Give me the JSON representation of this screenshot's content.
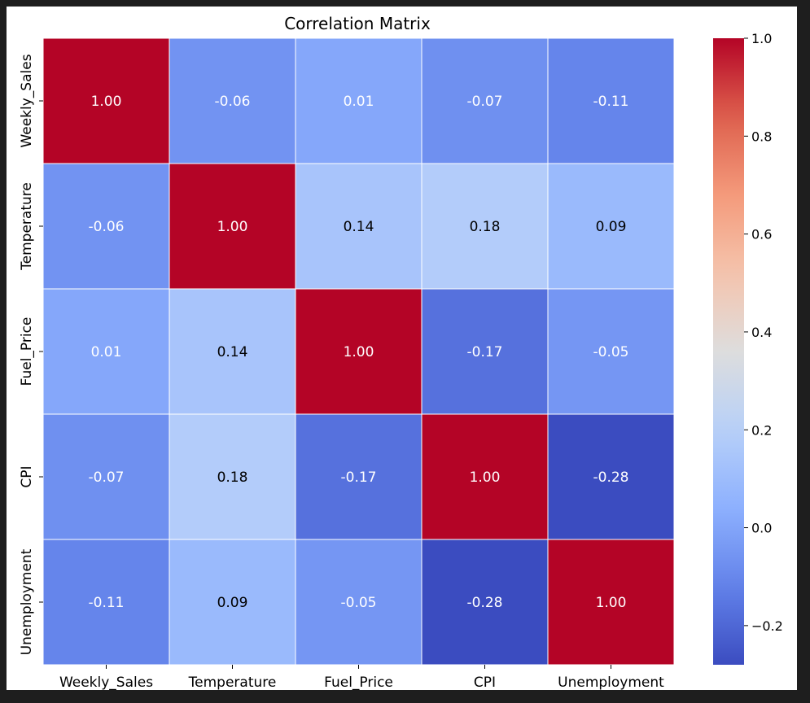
{
  "chart_data": {
    "type": "heatmap",
    "title": "Correlation Matrix",
    "x_labels": [
      "Weekly_Sales",
      "Temperature",
      "Fuel_Price",
      "CPI",
      "Unemployment"
    ],
    "y_labels": [
      "Weekly_Sales",
      "Temperature",
      "Fuel_Price",
      "CPI",
      "Unemployment"
    ],
    "values": [
      [
        1.0,
        -0.06,
        0.01,
        -0.07,
        -0.11
      ],
      [
        -0.06,
        1.0,
        0.14,
        0.18,
        0.09
      ],
      [
        0.01,
        0.14,
        1.0,
        -0.17,
        -0.05
      ],
      [
        -0.07,
        0.18,
        -0.17,
        1.0,
        -0.28
      ],
      [
        -0.11,
        0.09,
        -0.05,
        -0.28,
        1.0
      ]
    ],
    "cell_labels": [
      [
        "1.00",
        "-0.06",
        "0.01",
        "-0.07",
        "-0.11"
      ],
      [
        "-0.06",
        "1.00",
        "0.14",
        "0.18",
        "0.09"
      ],
      [
        "0.01",
        "0.14",
        "1.00",
        "-0.17",
        "-0.05"
      ],
      [
        "-0.07",
        "0.18",
        "-0.17",
        "1.00",
        "-0.28"
      ],
      [
        "-0.11",
        "0.09",
        "-0.05",
        "-0.28",
        "1.00"
      ]
    ],
    "colormap": "coolwarm",
    "color_range": [
      -0.28,
      1.0
    ],
    "colorbar_ticks": [
      1.0,
      0.8,
      0.6,
      0.4,
      0.2,
      0.0,
      -0.2
    ],
    "colorbar_tick_labels": [
      "1.0",
      "0.8",
      "0.6",
      "0.4",
      "0.2",
      "0.0",
      "−0.2"
    ],
    "grid_line_color": "#ffffff",
    "colors": {
      "page_background": "#1e1e1e",
      "figure_background": "#ffffff",
      "light_text": "#ffffff",
      "dark_text": "#000000"
    }
  }
}
